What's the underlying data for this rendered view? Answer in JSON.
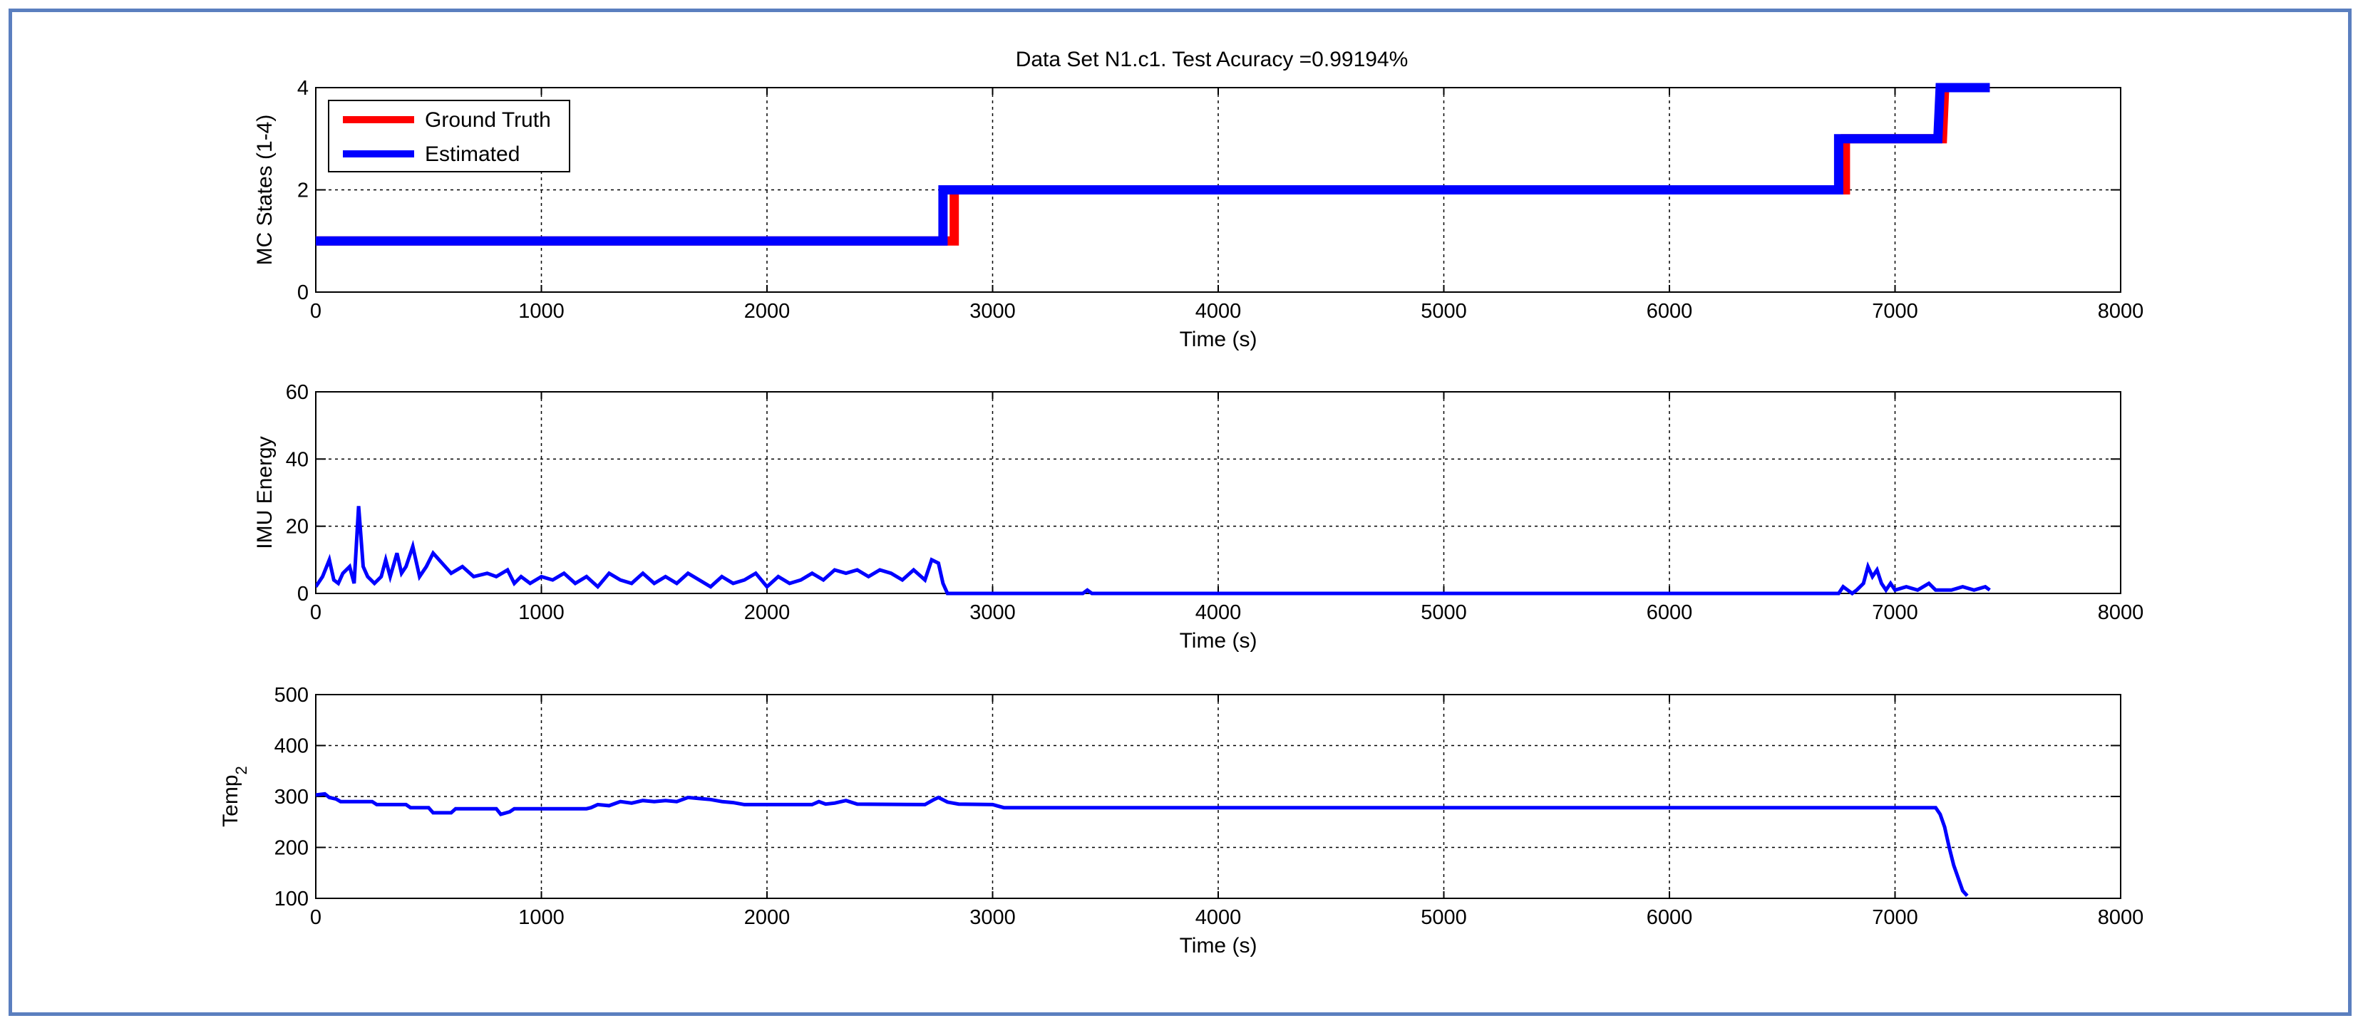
{
  "figure": {
    "title": "Data Set N1.c1. Test Acuracy =0.99194%",
    "border_color": "#5b7fbf"
  },
  "chart_data": [
    {
      "type": "line",
      "ylabel": "MC States (1-4)",
      "xlabel": "Time (s)",
      "xlim": [
        0,
        8000
      ],
      "ylim": [
        0,
        4
      ],
      "xticks": [
        "0",
        "1000",
        "2000",
        "3000",
        "4000",
        "5000",
        "6000",
        "7000",
        "8000"
      ],
      "yticks": [
        "0",
        "2",
        "4"
      ],
      "grid": true,
      "legend": {
        "position": "top-left",
        "entries": [
          "Ground Truth",
          "Estimated"
        ]
      },
      "series": [
        {
          "name": "Ground Truth",
          "color": "#ff0000",
          "points": [
            [
              0,
              1
            ],
            [
              2800,
              1
            ],
            [
              2800,
              1
            ],
            [
              2830,
              1
            ],
            [
              2830,
              2
            ],
            [
              6760,
              2
            ],
            [
              6760,
              2
            ],
            [
              6780,
              2
            ],
            [
              6780,
              3
            ],
            [
              7200,
              3
            ],
            [
              7210,
              3
            ],
            [
              7220,
              4
            ],
            [
              7420,
              4
            ]
          ]
        },
        {
          "name": "Estimated",
          "color": "#0000ff",
          "points": [
            [
              0,
              1
            ],
            [
              2780,
              1
            ],
            [
              2780,
              2
            ],
            [
              6750,
              2
            ],
            [
              6750,
              3
            ],
            [
              7190,
              3
            ],
            [
              7200,
              4
            ],
            [
              7420,
              4
            ]
          ]
        }
      ]
    },
    {
      "type": "line",
      "ylabel": "IMU Energy",
      "xlabel": "Time (s)",
      "xlim": [
        0,
        8000
      ],
      "ylim": [
        0,
        60
      ],
      "xticks": [
        "0",
        "1000",
        "2000",
        "3000",
        "4000",
        "5000",
        "6000",
        "7000",
        "8000"
      ],
      "yticks": [
        "0",
        "20",
        "40",
        "60"
      ],
      "grid": true,
      "series": [
        {
          "color": "#0000ff",
          "points": [
            [
              0,
              2
            ],
            [
              30,
              5
            ],
            [
              60,
              10
            ],
            [
              80,
              4
            ],
            [
              100,
              3
            ],
            [
              120,
              6
            ],
            [
              150,
              8
            ],
            [
              170,
              3
            ],
            [
              190,
              26
            ],
            [
              210,
              8
            ],
            [
              230,
              5
            ],
            [
              260,
              3
            ],
            [
              290,
              5
            ],
            [
              310,
              10
            ],
            [
              330,
              5
            ],
            [
              360,
              12
            ],
            [
              380,
              6
            ],
            [
              400,
              8
            ],
            [
              430,
              14
            ],
            [
              460,
              5
            ],
            [
              490,
              8
            ],
            [
              520,
              12
            ],
            [
              560,
              9
            ],
            [
              600,
              6
            ],
            [
              650,
              8
            ],
            [
              700,
              5
            ],
            [
              760,
              6
            ],
            [
              800,
              5
            ],
            [
              850,
              7
            ],
            [
              880,
              3
            ],
            [
              910,
              5
            ],
            [
              950,
              3
            ],
            [
              1000,
              5
            ],
            [
              1050,
              4
            ],
            [
              1100,
              6
            ],
            [
              1150,
              3
            ],
            [
              1200,
              5
            ],
            [
              1250,
              2
            ],
            [
              1300,
              6
            ],
            [
              1350,
              4
            ],
            [
              1400,
              3
            ],
            [
              1450,
              6
            ],
            [
              1500,
              3
            ],
            [
              1550,
              5
            ],
            [
              1600,
              3
            ],
            [
              1650,
              6
            ],
            [
              1700,
              4
            ],
            [
              1750,
              2
            ],
            [
              1800,
              5
            ],
            [
              1850,
              3
            ],
            [
              1900,
              4
            ],
            [
              1950,
              6
            ],
            [
              2000,
              2
            ],
            [
              2050,
              5
            ],
            [
              2100,
              3
            ],
            [
              2150,
              4
            ],
            [
              2200,
              6
            ],
            [
              2250,
              4
            ],
            [
              2300,
              7
            ],
            [
              2350,
              6
            ],
            [
              2400,
              7
            ],
            [
              2450,
              5
            ],
            [
              2500,
              7
            ],
            [
              2550,
              6
            ],
            [
              2600,
              4
            ],
            [
              2650,
              7
            ],
            [
              2700,
              4
            ],
            [
              2730,
              10
            ],
            [
              2760,
              9
            ],
            [
              2780,
              3
            ],
            [
              2800,
              0
            ],
            [
              3400,
              0
            ],
            [
              3420,
              1
            ],
            [
              3440,
              0
            ],
            [
              6750,
              0
            ],
            [
              6770,
              2
            ],
            [
              6790,
              1
            ],
            [
              6810,
              0
            ],
            [
              6830,
              1
            ],
            [
              6860,
              3
            ],
            [
              6880,
              8
            ],
            [
              6900,
              5
            ],
            [
              6920,
              7
            ],
            [
              6940,
              3
            ],
            [
              6960,
              1
            ],
            [
              6980,
              3
            ],
            [
              7000,
              1
            ],
            [
              7050,
              2
            ],
            [
              7100,
              1
            ],
            [
              7150,
              3
            ],
            [
              7180,
              1
            ],
            [
              7250,
              1
            ],
            [
              7300,
              2
            ],
            [
              7350,
              1
            ],
            [
              7400,
              2
            ],
            [
              7420,
              1
            ]
          ]
        }
      ]
    },
    {
      "type": "line",
      "ylabel": "Temp",
      "ylabel_subscript": "2",
      "xlabel": "Time (s)",
      "xlim": [
        0,
        8000
      ],
      "ylim": [
        100,
        500
      ],
      "xticks": [
        "0",
        "1000",
        "2000",
        "3000",
        "4000",
        "5000",
        "6000",
        "7000",
        "8000"
      ],
      "yticks": [
        "100",
        "200",
        "300",
        "400",
        "500"
      ],
      "grid": true,
      "series": [
        {
          "color": "#0000ff",
          "points": [
            [
              0,
              303
            ],
            [
              40,
              305
            ],
            [
              60,
              298
            ],
            [
              90,
              295
            ],
            [
              110,
              290
            ],
            [
              250,
              290
            ],
            [
              270,
              284
            ],
            [
              400,
              284
            ],
            [
              420,
              278
            ],
            [
              500,
              278
            ],
            [
              520,
              268
            ],
            [
              600,
              268
            ],
            [
              620,
              276
            ],
            [
              800,
              276
            ],
            [
              820,
              265
            ],
            [
              860,
              270
            ],
            [
              880,
              276
            ],
            [
              1200,
              276
            ],
            [
              1220,
              278
            ],
            [
              1250,
              284
            ],
            [
              1300,
              282
            ],
            [
              1350,
              290
            ],
            [
              1400,
              287
            ],
            [
              1450,
              292
            ],
            [
              1500,
              290
            ],
            [
              1550,
              292
            ],
            [
              1600,
              290
            ],
            [
              1650,
              298
            ],
            [
              1700,
              296
            ],
            [
              1750,
              294
            ],
            [
              1800,
              290
            ],
            [
              1850,
              288
            ],
            [
              1900,
              284
            ],
            [
              2200,
              284
            ],
            [
              2230,
              290
            ],
            [
              2260,
              285
            ],
            [
              2300,
              287
            ],
            [
              2350,
              292
            ],
            [
              2400,
              285
            ],
            [
              2700,
              284
            ],
            [
              2740,
              294
            ],
            [
              2760,
              298
            ],
            [
              2800,
              289
            ],
            [
              2850,
              285
            ],
            [
              3000,
              284
            ],
            [
              3050,
              278
            ],
            [
              7180,
              278
            ],
            [
              7200,
              265
            ],
            [
              7220,
              240
            ],
            [
              7240,
              200
            ],
            [
              7260,
              165
            ],
            [
              7280,
              140
            ],
            [
              7300,
              115
            ],
            [
              7320,
              105
            ]
          ]
        }
      ]
    }
  ]
}
